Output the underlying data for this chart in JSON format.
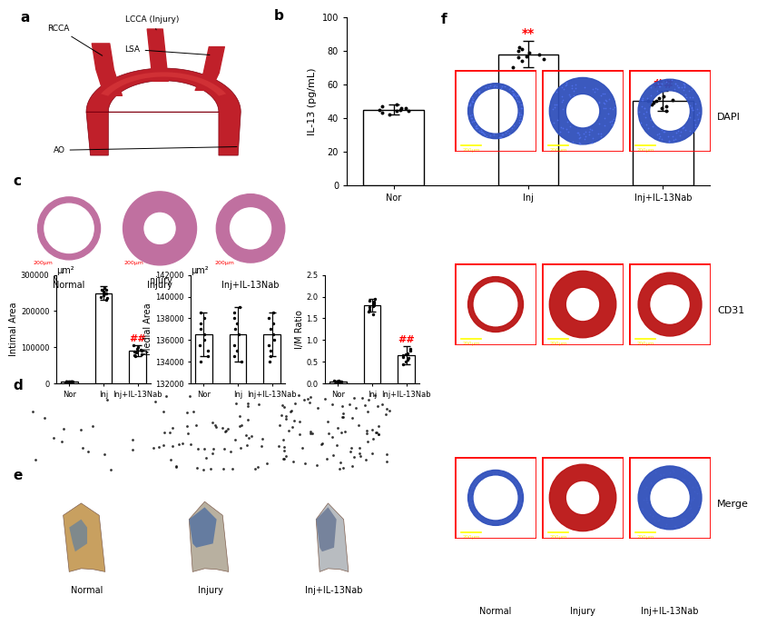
{
  "bar_b_categories": [
    "Nor",
    "Inj",
    "Inj+IL-13Nab"
  ],
  "bar_b_values": [
    45,
    78,
    50
  ],
  "bar_b_errors": [
    3,
    8,
    6
  ],
  "bar_b_ylabel": "IL-13 (pg/mL)",
  "bar_b_ylim": [
    0,
    100
  ],
  "bar_b_yticks": [
    0,
    20,
    40,
    60,
    80,
    100
  ],
  "bar_b_dots_nor": [
    42,
    44,
    46,
    48,
    43,
    47,
    45,
    46,
    44,
    45
  ],
  "bar_b_dots_inj": [
    70,
    75,
    78,
    82,
    76,
    80,
    74,
    79,
    77,
    81
  ],
  "bar_b_dots_inj13": [
    44,
    48,
    50,
    52,
    46,
    51,
    49,
    53,
    47,
    50
  ],
  "bar_b_sig_inj": "**",
  "bar_b_sig_inj13": "##",
  "bar_intimal_categories": [
    "Nor",
    "Inj",
    "Inj+IL-13Nab"
  ],
  "bar_intimal_values": [
    5000,
    250000,
    90000
  ],
  "bar_intimal_errors": [
    2000,
    20000,
    15000
  ],
  "bar_intimal_ylabel": "Intimal Area",
  "bar_intimal_unit": "μm²",
  "bar_intimal_sig": "##",
  "bar_intimal_dots_nor": [
    3000,
    5000,
    6000,
    4000,
    5500,
    4500,
    6500,
    3500,
    5200,
    4800
  ],
  "bar_intimal_dots_inj": [
    230000,
    250000,
    260000,
    240000,
    255000,
    245000,
    265000,
    235000,
    248000,
    258000
  ],
  "bar_intimal_dots_inj13": [
    75000,
    90000,
    100000,
    85000,
    95000,
    80000,
    105000,
    88000,
    92000,
    78000
  ],
  "bar_medial_categories": [
    "Nor",
    "Inj",
    "Inj+IL-13Nab"
  ],
  "bar_medial_values": [
    136500,
    136500,
    136500
  ],
  "bar_medial_errors": [
    2000,
    2500,
    2000
  ],
  "bar_medial_ylabel": "Medial Area",
  "bar_medial_unit": "μm²",
  "bar_medial_dots_nor": [
    134000,
    135000,
    137000,
    138000,
    136000,
    135500,
    137500,
    134500,
    136500,
    138500
  ],
  "bar_medial_dots_inj": [
    134000,
    135500,
    137000,
    138500,
    136500,
    135000,
    138000,
    134500,
    137500,
    139000
  ],
  "bar_medial_dots_inj13": [
    134500,
    136000,
    137500,
    138000,
    135500,
    136500,
    137000,
    135000,
    138500,
    134000
  ],
  "bar_im_categories": [
    "Nor",
    "Inj",
    "Inj+IL-13Nab"
  ],
  "bar_im_values": [
    0.05,
    1.8,
    0.65
  ],
  "bar_im_errors": [
    0.02,
    0.15,
    0.2
  ],
  "bar_im_ylabel": "I/M Ratio",
  "bar_im_ylim": [
    0,
    2.5
  ],
  "bar_im_yticks": [
    0.0,
    0.5,
    1.0,
    1.5,
    2.0,
    2.5
  ],
  "bar_im_sig": "##",
  "bar_im_dots_nor": [
    0.02,
    0.04,
    0.06,
    0.03,
    0.05,
    0.04,
    0.06,
    0.03,
    0.05,
    0.04
  ],
  "bar_im_dots_inj": [
    1.6,
    1.75,
    1.85,
    1.9,
    1.7,
    1.8,
    1.95,
    1.65,
    1.88,
    1.78
  ],
  "bar_im_dots_inj13": [
    0.45,
    0.55,
    0.65,
    0.75,
    0.6,
    0.5,
    0.7,
    0.58,
    0.68,
    0.8
  ],
  "f_row_labels": [
    "DAPI",
    "CD31",
    "Merge"
  ],
  "f_col_labels": [
    "Normal",
    "Injury",
    "Inj+IL-13Nab"
  ],
  "e_col_labels": [
    "Normal",
    "Injury",
    "Inj+IL-13Nab"
  ],
  "bar_color": "#ffffff",
  "bar_edge_color": "#000000",
  "sig_color_red": "#ff0000",
  "sig_color_hash": "#ff0000",
  "background_color": "#ffffff"
}
